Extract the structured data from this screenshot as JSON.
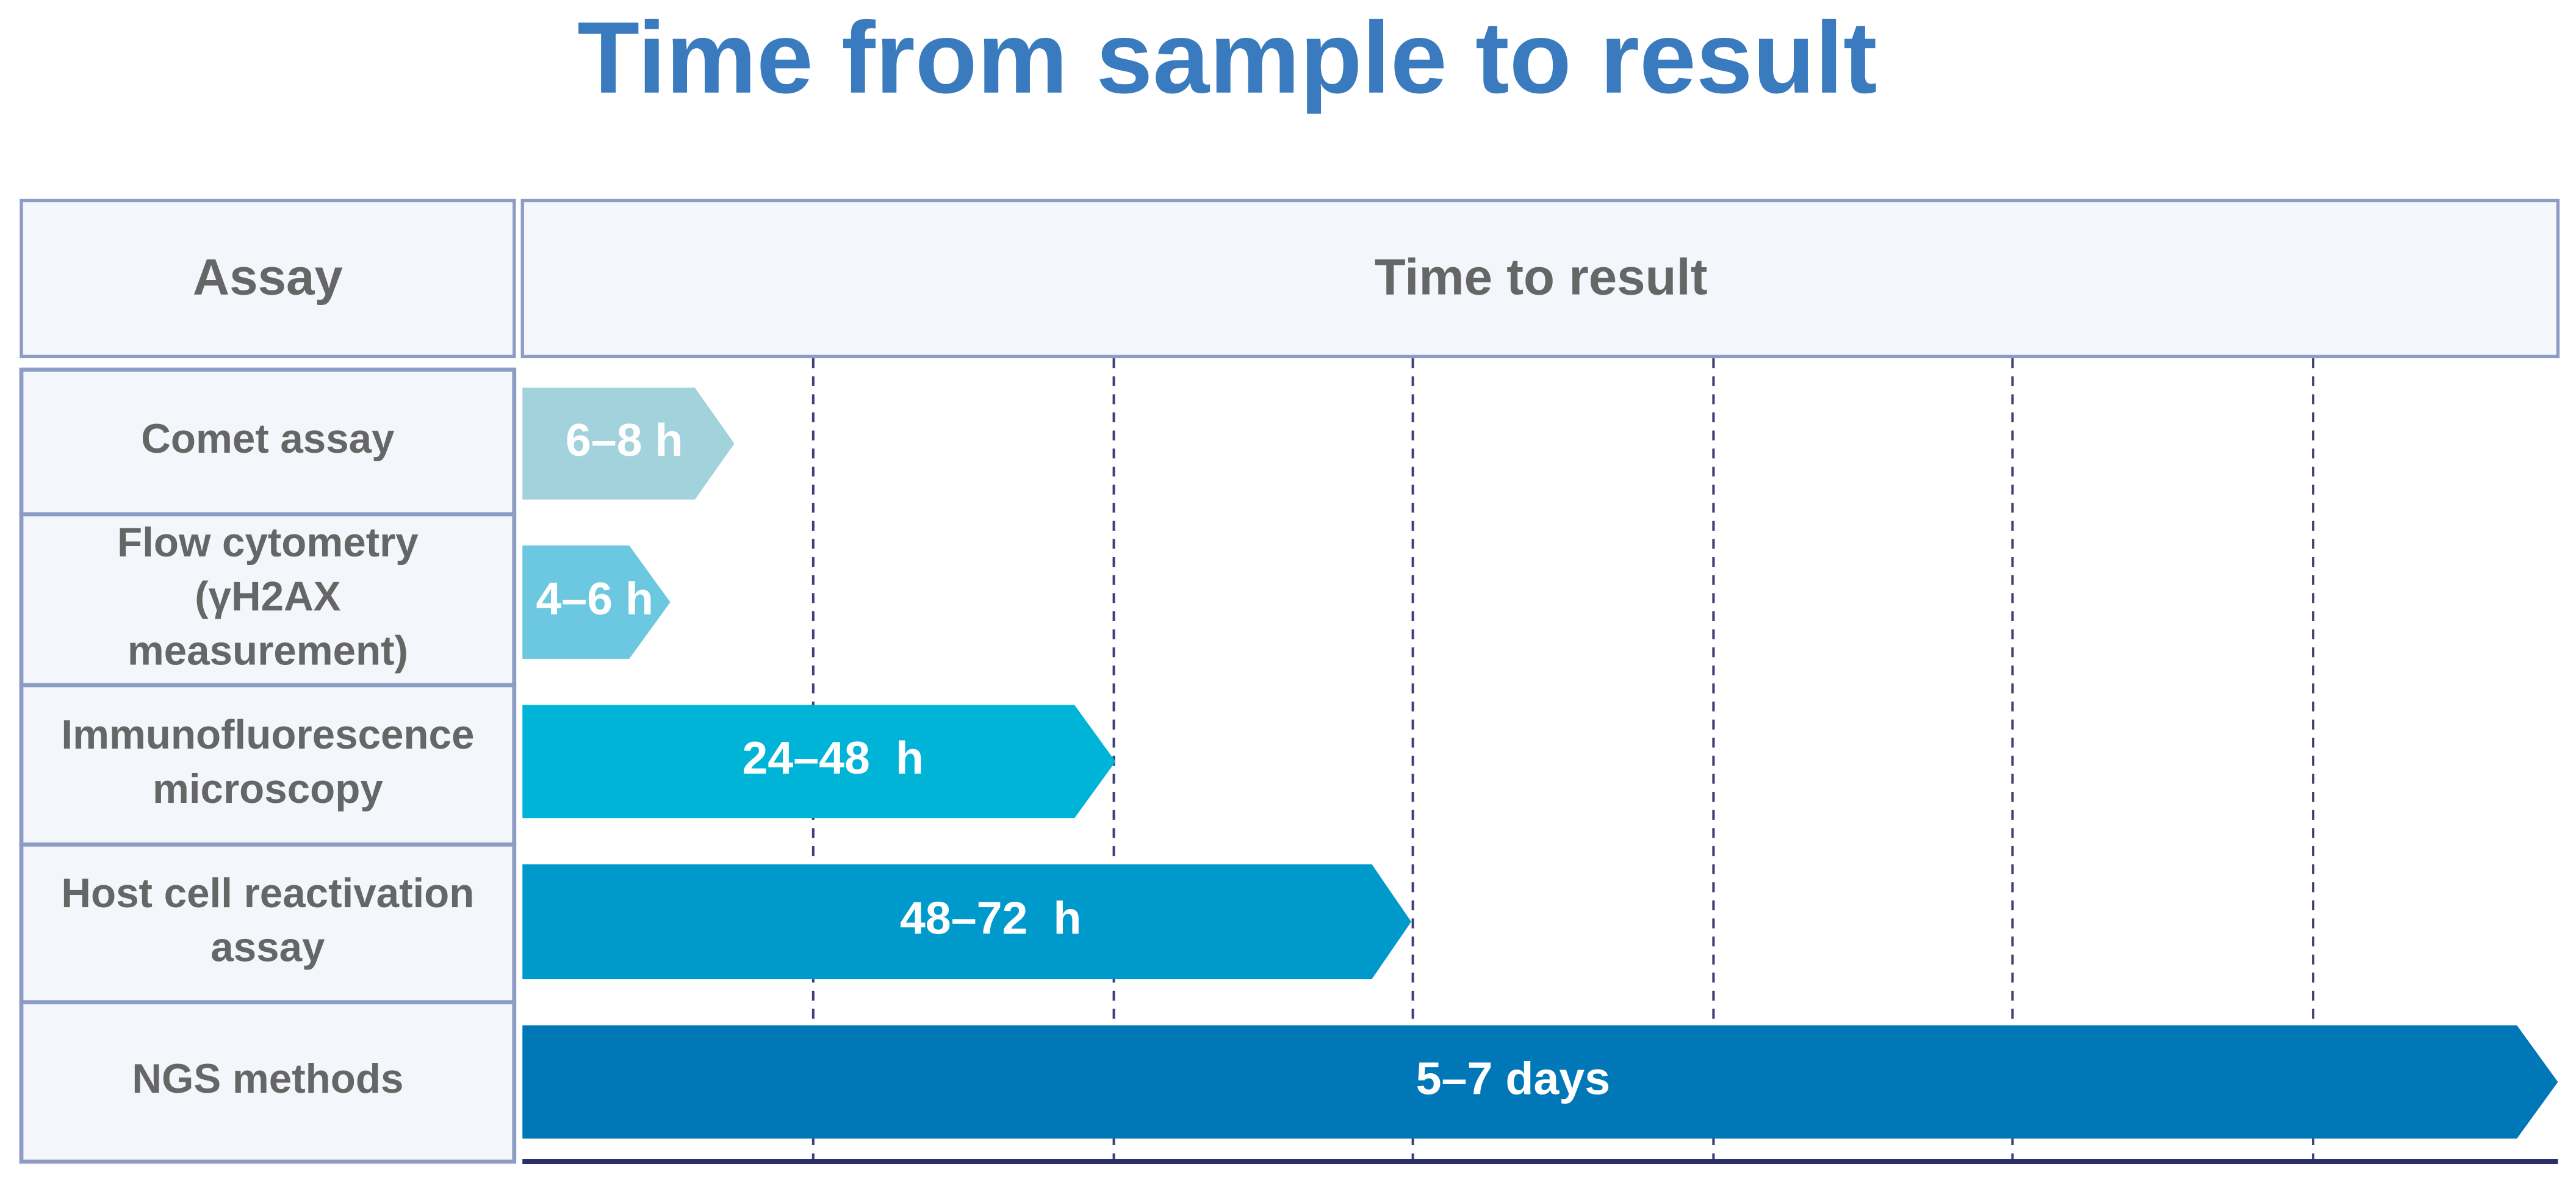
{
  "title": "Time from sample to result",
  "header": {
    "assay": "Assay",
    "time": "Time to result"
  },
  "rows": [
    {
      "assay": [
        "Comet assay"
      ],
      "time": "6–8 h"
    },
    {
      "assay": [
        "Flow cytometry",
        "(γH2AX",
        "measurement)"
      ],
      "time": "4–6 h"
    },
    {
      "assay": [
        "Immunofluorescence",
        "microscopy"
      ],
      "time": "24–48  h"
    },
    {
      "assay": [
        "Host cell reactivation",
        "assay"
      ],
      "time": "48–72  h"
    },
    {
      "assay": [
        "NGS methods"
      ],
      "time": "5–7 days"
    }
  ]
}
